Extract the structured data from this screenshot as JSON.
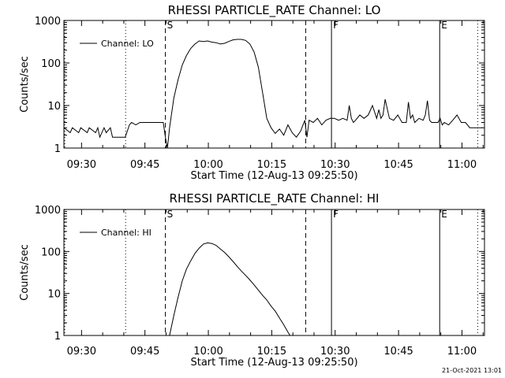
{
  "footer": {
    "stamp": "21-Oct-2021 13:01"
  },
  "chart_data": [
    {
      "type": "line",
      "title": "RHESSI PARTICLE_RATE Channel: LO",
      "xlabel": "Start Time (12-Aug-13 09:25:50)",
      "ylabel": "Counts/sec",
      "x_unit": "minutes after 09:25:50",
      "xlim": [
        0,
        99.5
      ],
      "ylim": [
        1,
        1000
      ],
      "yscale": "log",
      "x_tick_labels": [
        "09:30",
        "09:45",
        "10:00",
        "10:15",
        "10:30",
        "10:45",
        "11:00"
      ],
      "x_tick_values": [
        4.17,
        19.17,
        34.17,
        49.17,
        64.17,
        79.17,
        94.17
      ],
      "y_tick_labels": [
        "1",
        "10",
        "100",
        "1000"
      ],
      "y_tick_values": [
        1,
        10,
        100,
        1000
      ],
      "legend": {
        "position": "top-left",
        "entries": [
          "Channel: LO"
        ]
      },
      "markers": [
        {
          "label": "",
          "x": 0.2,
          "style": "dotted"
        },
        {
          "label": "",
          "x": 14.6,
          "style": "dotted"
        },
        {
          "label": "S",
          "x": 24.0,
          "style": "dashed"
        },
        {
          "label": "",
          "x": 57.2,
          "style": "dashed"
        },
        {
          "label": "F",
          "x": 63.3,
          "style": "solid"
        },
        {
          "label": "E",
          "x": 88.9,
          "style": "solid"
        },
        {
          "label": "",
          "x": 97.9,
          "style": "dotted"
        }
      ],
      "series": [
        {
          "name": "Channel: LO",
          "x": [
            0,
            1.5,
            2,
            3.5,
            4,
            5.5,
            6,
            7.5,
            8,
            8.5,
            9.5,
            10,
            11,
            11.5,
            12.5,
            13,
            14.5,
            15.5,
            16,
            17,
            18,
            19,
            20,
            21,
            22,
            22.5,
            23,
            23.5,
            24,
            24.5,
            25,
            26,
            27,
            28,
            29,
            30,
            31,
            32,
            33,
            34,
            35,
            36,
            37,
            38,
            39,
            40,
            41,
            42,
            43,
            44,
            45,
            46,
            47,
            48,
            49,
            50,
            51,
            52,
            53,
            54,
            55,
            56,
            57,
            57.5,
            58,
            59,
            60,
            61,
            62,
            63,
            64,
            65,
            66,
            67,
            67.5,
            68,
            68.5,
            69,
            70,
            71,
            72,
            73,
            74,
            74.5,
            75,
            75.5,
            76,
            77,
            78,
            79,
            80,
            81,
            81.5,
            82,
            82.5,
            83,
            84,
            85,
            85.5,
            86,
            86.5,
            87,
            88,
            88.5,
            89,
            89.5,
            90,
            91,
            92,
            93,
            94,
            95,
            96,
            97,
            98,
            99
          ],
          "values": [
            3,
            2.3,
            3,
            2.3,
            3,
            2.3,
            3,
            2.3,
            3,
            1.8,
            3,
            2.3,
            3,
            1.8,
            1.8,
            1.8,
            1.8,
            3.5,
            4,
            3.5,
            4,
            4,
            4,
            4,
            4,
            4,
            4,
            4,
            1.8,
            1.0,
            3,
            15,
            40,
            90,
            150,
            220,
            280,
            330,
            320,
            330,
            310,
            300,
            280,
            290,
            320,
            350,
            360,
            360,
            340,
            280,
            180,
            80,
            20,
            5,
            3,
            2.2,
            2.8,
            2,
            3.5,
            2.3,
            1.8,
            2.5,
            4.5,
            1.8,
            4.5,
            4,
            5,
            3.5,
            4.5,
            5,
            5,
            4.5,
            5,
            4.5,
            10,
            5,
            4,
            4.5,
            6,
            5,
            6,
            10,
            5,
            8,
            5,
            6,
            14,
            5,
            4.5,
            6,
            4,
            4,
            12,
            5,
            6,
            4,
            5,
            4.5,
            6,
            13,
            4.5,
            4,
            4,
            4,
            5,
            3.5,
            4,
            3.5,
            4.5,
            6,
            4,
            4,
            3,
            3,
            3,
            3
          ]
        }
      ]
    },
    {
      "type": "line",
      "title": "RHESSI PARTICLE_RATE Channel: HI",
      "xlabel": "Start Time (12-Aug-13 09:25:50)",
      "ylabel": "Counts/sec",
      "x_unit": "minutes after 09:25:50",
      "xlim": [
        0,
        99.5
      ],
      "ylim": [
        1,
        1000
      ],
      "yscale": "log",
      "x_tick_labels": [
        "09:30",
        "09:45",
        "10:00",
        "10:15",
        "10:30",
        "10:45",
        "11:00"
      ],
      "x_tick_values": [
        4.17,
        19.17,
        34.17,
        49.17,
        64.17,
        79.17,
        94.17
      ],
      "y_tick_labels": [
        "1",
        "10",
        "100",
        "1000"
      ],
      "y_tick_values": [
        1,
        10,
        100,
        1000
      ],
      "legend": {
        "position": "top-left",
        "entries": [
          "Channel: HI"
        ]
      },
      "markers": [
        {
          "label": "",
          "x": 0.2,
          "style": "dotted"
        },
        {
          "label": "",
          "x": 14.6,
          "style": "dotted"
        },
        {
          "label": "S",
          "x": 24.0,
          "style": "dashed"
        },
        {
          "label": "",
          "x": 57.2,
          "style": "dashed"
        },
        {
          "label": "F",
          "x": 63.3,
          "style": "solid"
        },
        {
          "label": "E",
          "x": 88.9,
          "style": "solid"
        },
        {
          "label": "",
          "x": 97.9,
          "style": "dotted"
        }
      ],
      "series": [
        {
          "name": "Channel: HI",
          "x": [
            25,
            26,
            27,
            28,
            29,
            30,
            31,
            32,
            33,
            34,
            35,
            36,
            37,
            38,
            39,
            40,
            41,
            42,
            43,
            44,
            45,
            46,
            47,
            48,
            49,
            50,
            51,
            52,
            53,
            53.5
          ],
          "values": [
            1,
            3,
            8,
            20,
            38,
            60,
            90,
            120,
            150,
            160,
            155,
            140,
            115,
            95,
            75,
            58,
            44,
            34,
            27,
            21,
            16,
            12,
            9,
            7,
            5,
            3.8,
            2.6,
            1.8,
            1.2,
            1
          ]
        }
      ]
    }
  ]
}
